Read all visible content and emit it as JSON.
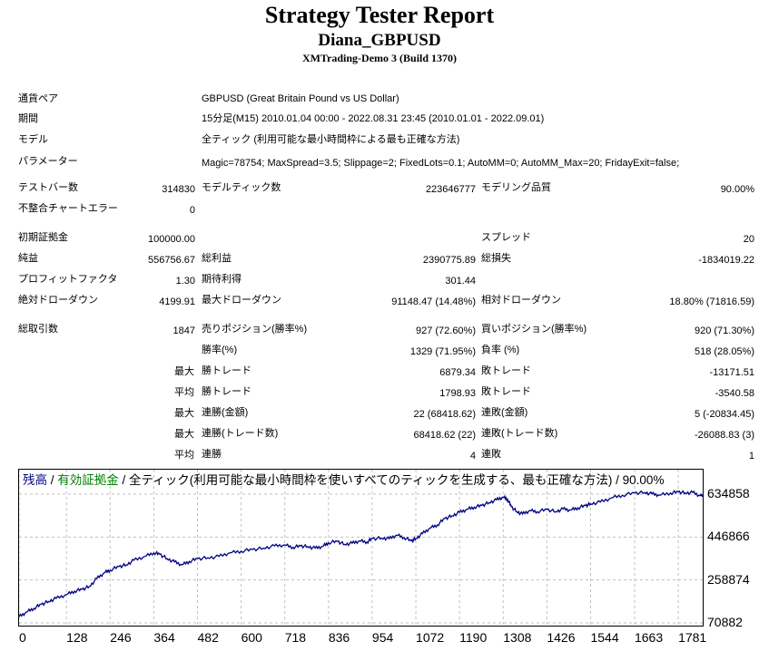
{
  "header": {
    "title": "Strategy Tester Report",
    "subtitle": "Diana_GBPUSD",
    "server": "XMTrading-Demo 3 (Build 1370)"
  },
  "info": {
    "symbol_label": "通貨ペア",
    "symbol": "GBPUSD (Great Britain Pound vs US Dollar)",
    "period_label": "期間",
    "period": "15分足(M15) 2010.01.04 00:00 - 2022.08.31 23:45 (2010.01.01 - 2022.09.01)",
    "model_label": "モデル",
    "model": "全ティック (利用可能な最小時間枠による最も正確な方法)",
    "params_label": "パラメーター",
    "params": "Magic=78754; MaxSpread=3.5; Slippage=2; FixedLots=0.1; AutoMM=0; AutoMM_Max=20; FridayExit=false;"
  },
  "stats": {
    "bars_label": "テストバー数",
    "bars": "314830",
    "ticks_label": "モデルティック数",
    "ticks": "223646777",
    "quality_label": "モデリング品質",
    "quality": "90.00%",
    "errors_label": "不整合チャートエラー",
    "errors": "0",
    "deposit_label": "初期証拠金",
    "deposit": "100000.00",
    "spread_label": "スプレッド",
    "spread": "20",
    "net_label": "純益",
    "net": "556756.67",
    "gross_profit_label": "総利益",
    "gross_profit": "2390775.89",
    "gross_loss_label": "総損失",
    "gross_loss": "-1834019.22",
    "pf_label": "プロフィットファクタ",
    "pf": "1.30",
    "expected_label": "期待利得",
    "expected": "301.44",
    "abs_dd_label": "絶対ドローダウン",
    "abs_dd": "4199.91",
    "max_dd_label": "最大ドローダウン",
    "max_dd": "91148.47 (14.48%)",
    "rel_dd_label": "相対ドローダウン",
    "rel_dd": "18.80% (71816.59)",
    "total_label": "総取引数",
    "total": "1847",
    "short_label": "売りポジション(勝率%)",
    "short": "927 (72.60%)",
    "long_label": "買いポジション(勝率%)",
    "long": "920 (71.30%)",
    "winrate_label": "勝率(%)",
    "winrate": "1329 (71.95%)",
    "lossrate_label": "負率 (%)",
    "lossrate": "518 (28.05%)",
    "max_label": "最大",
    "avg_label": "平均",
    "largest_win_label": "勝トレード",
    "largest_win": "6879.34",
    "largest_loss_label": "敗トレード",
    "largest_loss": "-13171.51",
    "avg_win_label": "勝トレード",
    "avg_win": "1798.93",
    "avg_loss_label": "敗トレード",
    "avg_loss": "-3540.58",
    "max_cons_wins_label": "連勝(金額)",
    "max_cons_wins": "22 (68418.62)",
    "max_cons_losses_label": "連敗(金額)",
    "max_cons_losses": "5 (-20834.45)",
    "max_cons_profit_label": "連勝(トレード数)",
    "max_cons_profit": "68418.62 (22)",
    "max_cons_loss_label": "連敗(トレード数)",
    "max_cons_loss": "-26088.83 (3)",
    "avg_cons_wins_label": "連勝",
    "avg_cons_wins": "4",
    "avg_cons_losses_label": "連敗",
    "avg_cons_losses": "1"
  },
  "chart": {
    "legend_balance": "残高",
    "legend_sep1": " / ",
    "legend_equity": "有効証拠金",
    "legend_rest": " / 全ティック(利用可能な最小時間枠を使いすべてのティックを生成する、最も正確な方法) / 90.00%",
    "y_ticks": [
      "634858",
      "446866",
      "258874",
      "70882"
    ],
    "x_ticks": [
      "0",
      "128",
      "246",
      "364",
      "482",
      "600",
      "718",
      "836",
      "954",
      "1072",
      "1190",
      "1308",
      "1426",
      "1544",
      "1663",
      "1781"
    ],
    "colors": {
      "balance": "#000080",
      "equity": "#008000",
      "grid": "#c0c0c0"
    }
  },
  "chart_data": {
    "type": "line",
    "title": "",
    "xlabel": "",
    "ylabel": "",
    "xlim": [
      0,
      1847
    ],
    "ylim": [
      70882,
      634858
    ],
    "grid": true,
    "series": [
      {
        "name": "残高",
        "x": [
          0,
          20,
          40,
          60,
          80,
          100,
          128,
          150,
          170,
          190,
          210,
          230,
          246,
          270,
          290,
          310,
          340,
          364,
          380,
          400,
          420,
          440,
          460,
          482,
          510,
          540,
          570,
          600,
          630,
          660,
          690,
          718,
          740,
          760,
          780,
          800,
          820,
          836,
          860,
          880,
          900,
          920,
          940,
          954,
          980,
          1000,
          1020,
          1040,
          1060,
          1072,
          1090,
          1110,
          1130,
          1150,
          1170,
          1190,
          1210,
          1230,
          1250,
          1270,
          1290,
          1308,
          1320,
          1330,
          1345,
          1360,
          1380,
          1400,
          1426,
          1450,
          1470,
          1490,
          1510,
          1530,
          1544,
          1570,
          1600,
          1630,
          1663,
          1690,
          1710,
          1730,
          1760,
          1781,
          1800,
          1820,
          1840,
          1847
        ],
        "y": [
          98000,
          118000,
          135000,
          152000,
          165000,
          178000,
          195000,
          210000,
          218000,
          230000,
          265000,
          290000,
          302000,
          318000,
          325000,
          345000,
          362000,
          378000,
          372000,
          352000,
          338000,
          325000,
          340000,
          352000,
          356000,
          362000,
          378000,
          385000,
          392000,
          398000,
          408000,
          412000,
          402000,
          408000,
          405000,
          398000,
          406000,
          422000,
          428000,
          415000,
          420000,
          430000,
          425000,
          440000,
          442000,
          440000,
          455000,
          445000,
          430000,
          440000,
          462000,
          486000,
          500000,
          528000,
          540000,
          555000,
          568000,
          578000,
          585000,
          598000,
          610000,
          622000,
          612000,
          580000,
          558000,
          548000,
          563000,
          558000,
          568000,
          558000,
          570000,
          565000,
          575000,
          585000,
          592000,
          600000,
          618000,
          630000,
          640000,
          642000,
          636000,
          630000,
          640000,
          645000,
          640000,
          642000,
          628000,
          632000
        ]
      }
    ]
  }
}
